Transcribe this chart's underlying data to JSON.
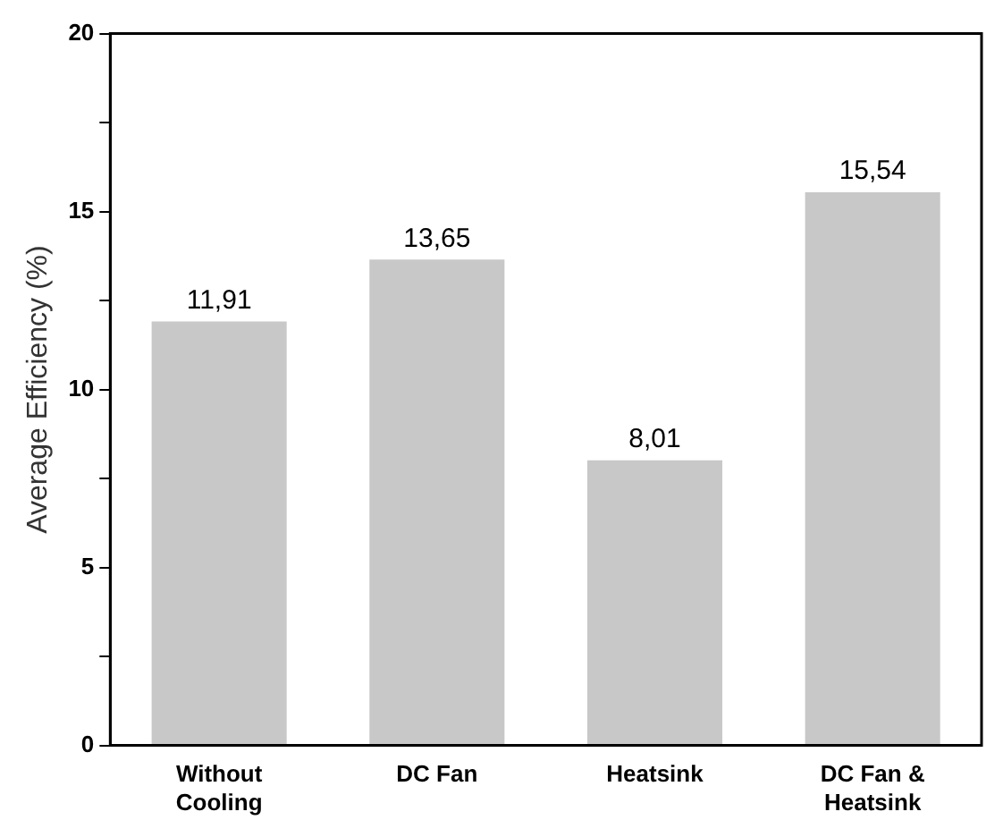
{
  "chart_data": {
    "type": "bar",
    "ylabel": "Average Efficiency (%)",
    "categories": [
      "Without Cooling",
      "DC Fan",
      "Heatsink",
      "DC Fan & Heatsink"
    ],
    "values": [
      11.91,
      13.65,
      8.01,
      15.54
    ],
    "value_labels": [
      "11,91",
      "13,65",
      "8,01",
      "15,54"
    ],
    "color": "#c8c8c8",
    "ylim": [
      0,
      20
    ],
    "yticks": [
      0,
      {
        "value": 2.5,
        "label": null
      },
      5,
      {
        "value": 7.5,
        "label": null
      },
      10,
      {
        "value": 12.5,
        "label": null
      },
      15,
      {
        "value": 17.5,
        "label": null
      },
      20
    ],
    "grid": false,
    "legend": false
  }
}
